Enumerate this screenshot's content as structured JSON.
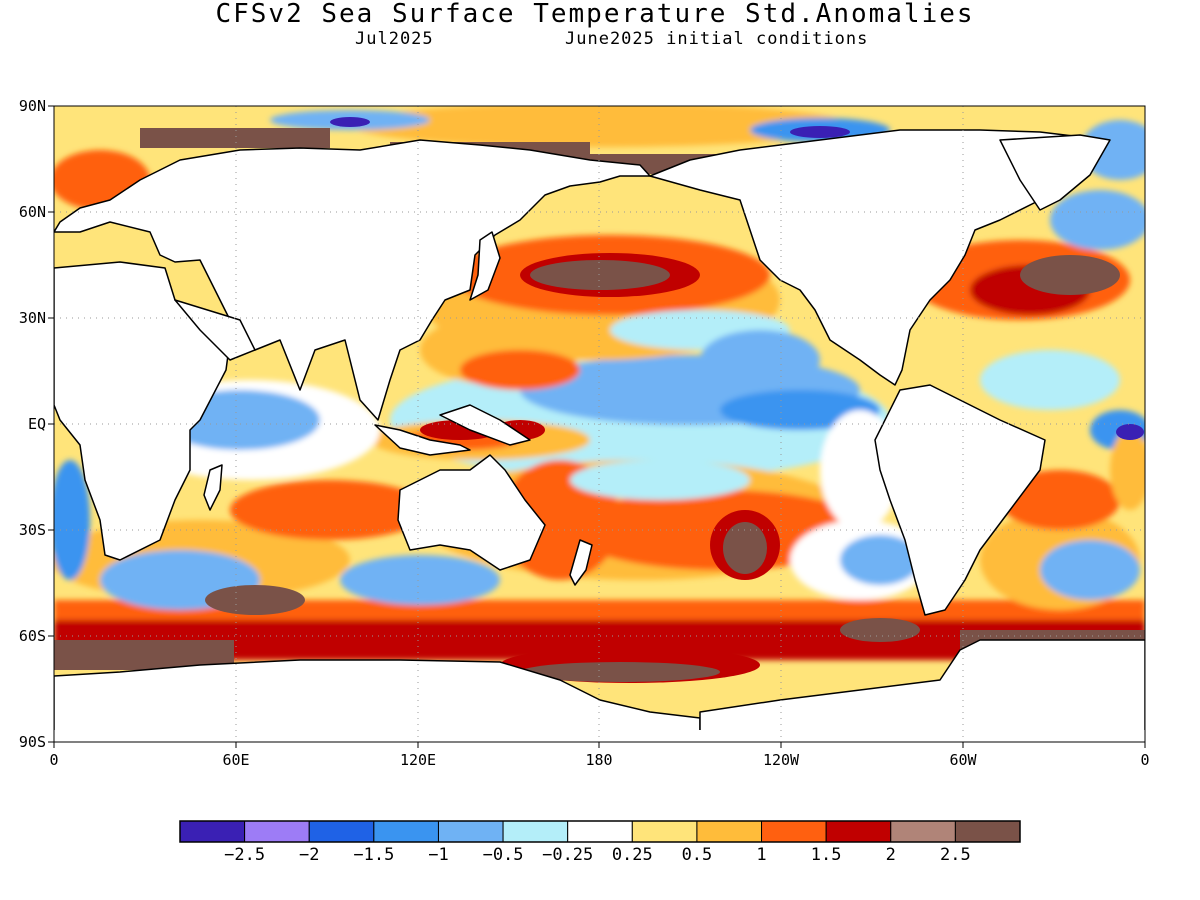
{
  "title": "CFSv2 Sea Surface Temperature Std.Anomalies",
  "valid_month": "Jul2025",
  "init_label": "June2025 initial conditions",
  "lat_labels": [
    "90N",
    "60N",
    "30N",
    "EQ",
    "30S",
    "60S",
    "90S"
  ],
  "lon_labels": [
    "0",
    "60E",
    "120E",
    "180",
    "120W",
    "60W",
    "0"
  ],
  "colorbar": {
    "colors": [
      "#3a20b4",
      "#9d7cf6",
      "#1f62e6",
      "#3a94f0",
      "#6fb2f4",
      "#b4eef9",
      "#ffffff",
      "#ffe47a",
      "#ffbc3a",
      "#ff6010",
      "#c00000",
      "#b08478",
      "#7a5248"
    ],
    "labels": [
      "−2.5",
      "−2",
      "−1.5",
      "−1",
      "−0.5",
      "−0.25",
      "0.25",
      "0.5",
      "1",
      "1.5",
      "2",
      "2.5"
    ]
  }
}
